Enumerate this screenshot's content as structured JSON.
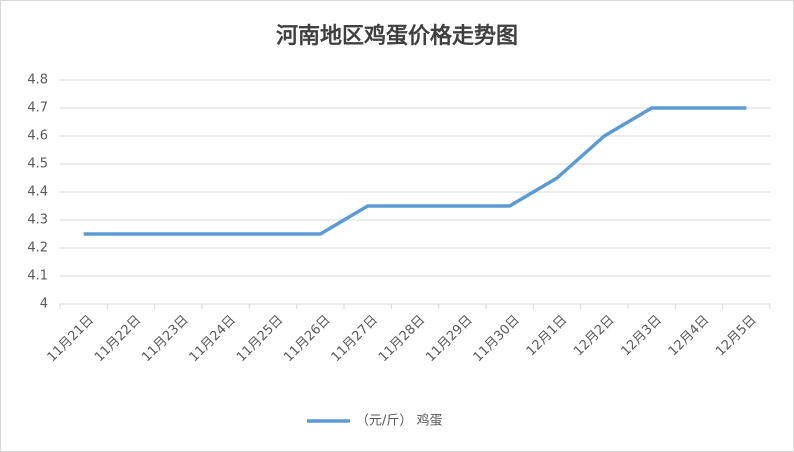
{
  "chart_data": {
    "type": "line",
    "title": "河南地区鸡蛋价格走势图",
    "categories": [
      "11月21日",
      "11月22日",
      "11月23日",
      "11月24日",
      "11月25日",
      "11月26日",
      "11月27日",
      "11月28日",
      "11月29日",
      "11月30日",
      "12月1日",
      "12月2日",
      "12月3日",
      "12月4日",
      "12月5日"
    ],
    "series": [
      {
        "name": "（元/斤） 鸡蛋",
        "color": "#5b9bd5",
        "values": [
          4.25,
          4.25,
          4.25,
          4.25,
          4.25,
          4.25,
          4.35,
          4.35,
          4.35,
          4.35,
          4.45,
          4.6,
          4.7,
          4.7,
          4.7
        ]
      }
    ],
    "ylim": [
      4,
      4.8
    ],
    "yticks": [
      4,
      4.1,
      4.2,
      4.3,
      4.4,
      4.5,
      4.6,
      4.7,
      4.8
    ],
    "grid": true,
    "legend": "bottom"
  }
}
